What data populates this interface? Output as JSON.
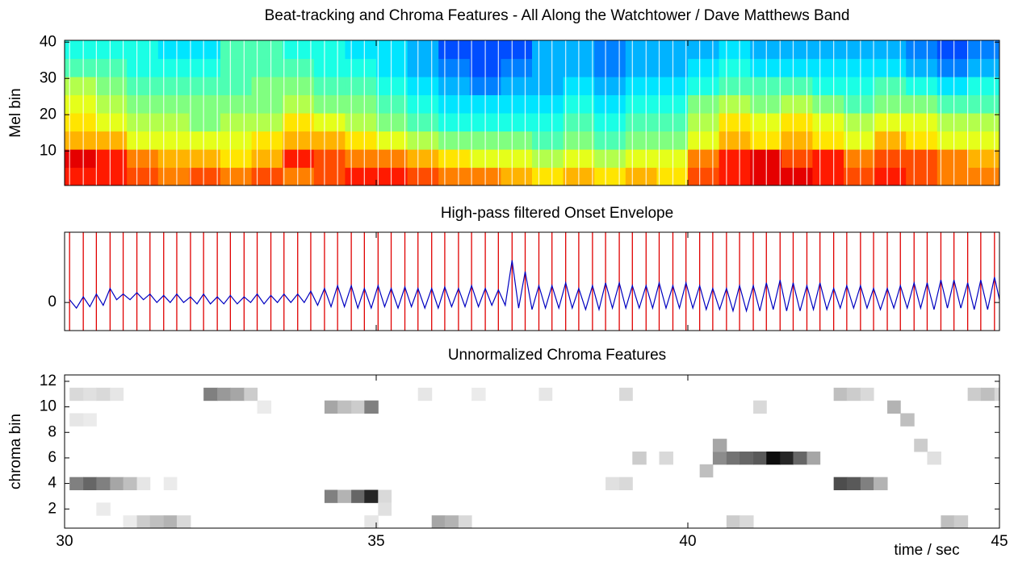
{
  "chart_data": [
    {
      "type": "heatmap",
      "title": "Beat-tracking and Chroma Features - All Along the Watchtower / Dave Matthews Band",
      "ylabel": "Mel bin",
      "xlim": [
        30,
        45
      ],
      "ylim": [
        0.5,
        40.5
      ],
      "yticks": [
        10,
        20,
        30,
        40
      ],
      "colormap": "jet",
      "rows": [
        [
          0.85,
          0.85,
          0.8,
          0.75,
          0.8,
          0.75,
          0.8,
          0.75,
          0.8,
          0.85,
          0.85,
          0.8,
          0.75,
          0.75,
          0.7,
          0.65,
          0.7,
          0.65,
          0.7,
          0.65,
          0.8,
          0.85,
          0.9,
          0.9,
          0.85,
          0.8,
          0.85,
          0.8,
          0.75,
          0.75
        ],
        [
          0.9,
          0.85,
          0.75,
          0.7,
          0.7,
          0.65,
          0.7,
          0.85,
          0.8,
          0.75,
          0.75,
          0.7,
          0.65,
          0.6,
          0.6,
          0.55,
          0.6,
          0.55,
          0.6,
          0.6,
          0.75,
          0.85,
          0.9,
          0.8,
          0.85,
          0.75,
          0.8,
          0.8,
          0.75,
          0.7
        ],
        [
          0.7,
          0.7,
          0.6,
          0.6,
          0.6,
          0.6,
          0.65,
          0.7,
          0.7,
          0.65,
          0.6,
          0.55,
          0.5,
          0.5,
          0.5,
          0.45,
          0.5,
          0.45,
          0.5,
          0.5,
          0.6,
          0.7,
          0.65,
          0.7,
          0.65,
          0.6,
          0.7,
          0.65,
          0.6,
          0.6
        ],
        [
          0.65,
          0.6,
          0.55,
          0.55,
          0.5,
          0.55,
          0.55,
          0.65,
          0.6,
          0.55,
          0.5,
          0.45,
          0.4,
          0.4,
          0.4,
          0.4,
          0.45,
          0.4,
          0.45,
          0.45,
          0.55,
          0.65,
          0.6,
          0.65,
          0.6,
          0.55,
          0.6,
          0.6,
          0.55,
          0.55
        ],
        [
          0.6,
          0.55,
          0.5,
          0.5,
          0.5,
          0.5,
          0.5,
          0.55,
          0.5,
          0.5,
          0.45,
          0.4,
          0.35,
          0.35,
          0.35,
          0.35,
          0.4,
          0.35,
          0.4,
          0.4,
          0.5,
          0.55,
          0.5,
          0.55,
          0.5,
          0.45,
          0.5,
          0.5,
          0.45,
          0.45
        ],
        [
          0.55,
          0.5,
          0.45,
          0.45,
          0.45,
          0.45,
          0.5,
          0.5,
          0.45,
          0.45,
          0.4,
          0.35,
          0.3,
          0.25,
          0.3,
          0.3,
          0.35,
          0.3,
          0.35,
          0.35,
          0.4,
          0.45,
          0.45,
          0.45,
          0.4,
          0.4,
          0.45,
          0.4,
          0.35,
          0.4
        ],
        [
          0.45,
          0.45,
          0.4,
          0.4,
          0.4,
          0.45,
          0.45,
          0.45,
          0.4,
          0.4,
          0.35,
          0.3,
          0.25,
          0.2,
          0.25,
          0.3,
          0.3,
          0.25,
          0.3,
          0.3,
          0.35,
          0.4,
          0.35,
          0.35,
          0.35,
          0.35,
          0.35,
          0.3,
          0.25,
          0.3
        ],
        [
          0.4,
          0.4,
          0.4,
          0.35,
          0.35,
          0.45,
          0.45,
          0.4,
          0.4,
          0.35,
          0.35,
          0.3,
          0.2,
          0.2,
          0.2,
          0.3,
          0.3,
          0.25,
          0.3,
          0.3,
          0.3,
          0.35,
          0.3,
          0.3,
          0.3,
          0.3,
          0.3,
          0.25,
          0.2,
          0.25
        ]
      ]
    },
    {
      "type": "line",
      "title": "High-pass filtered Onset Envelope",
      "xlim": [
        30,
        45
      ],
      "ylim": [
        -1,
        2.5
      ],
      "yticks": [
        0
      ],
      "beat_color": "#e00000",
      "color": "#0000c0",
      "beats": [
        30.08,
        30.3,
        30.51,
        30.73,
        30.94,
        31.16,
        31.37,
        31.59,
        31.8,
        32.02,
        32.23,
        32.45,
        32.66,
        32.88,
        33.09,
        33.31,
        33.52,
        33.74,
        33.95,
        34.17,
        34.38,
        34.6,
        34.81,
        35.03,
        35.24,
        35.46,
        35.67,
        35.89,
        36.1,
        36.32,
        36.53,
        36.75,
        36.96,
        37.18,
        37.39,
        37.61,
        37.82,
        38.04,
        38.25,
        38.47,
        38.68,
        38.9,
        39.11,
        39.33,
        39.54,
        39.76,
        39.97,
        40.19,
        40.4,
        40.62,
        40.83,
        41.05,
        41.26,
        41.48,
        41.69,
        41.91,
        42.12,
        42.34,
        42.55,
        42.77,
        42.98,
        43.2,
        43.41,
        43.63,
        43.84,
        44.06,
        44.27,
        44.49,
        44.7,
        44.92
      ],
      "peaks": [
        0.1,
        0.2,
        0.3,
        0.5,
        0.3,
        0.35,
        0.3,
        0.25,
        0.3,
        0.2,
        0.3,
        0.2,
        0.25,
        0.2,
        0.3,
        0.25,
        0.3,
        0.3,
        0.4,
        0.5,
        0.6,
        0.6,
        0.5,
        0.6,
        0.5,
        0.55,
        0.5,
        0.5,
        0.55,
        0.5,
        0.6,
        0.5,
        0.45,
        1.5,
        1.1,
        0.6,
        0.6,
        0.7,
        0.5,
        0.6,
        0.7,
        0.7,
        0.6,
        0.6,
        0.7,
        0.6,
        0.7,
        0.6,
        0.5,
        0.5,
        0.6,
        0.6,
        0.7,
        0.8,
        0.7,
        0.6,
        0.7,
        0.5,
        0.6,
        0.6,
        0.5,
        0.5,
        0.6,
        0.7,
        0.7,
        0.8,
        0.8,
        0.7,
        0.8,
        0.9
      ],
      "troughs": [
        -0.2,
        -0.15,
        -0.1,
        0.1,
        0.1,
        0.1,
        0.0,
        0.0,
        0.0,
        -0.05,
        -0.05,
        -0.05,
        -0.05,
        0.0,
        -0.05,
        0.0,
        0.0,
        0.0,
        -0.1,
        -0.15,
        -0.15,
        -0.2,
        -0.2,
        -0.15,
        -0.2,
        -0.15,
        -0.2,
        -0.2,
        -0.15,
        -0.15,
        -0.15,
        -0.1,
        -0.1,
        -0.2,
        -0.25,
        -0.2,
        -0.2,
        -0.2,
        -0.25,
        -0.25,
        -0.2,
        -0.2,
        -0.2,
        -0.2,
        -0.2,
        -0.2,
        -0.2,
        -0.25,
        -0.25,
        -0.3,
        -0.3,
        -0.3,
        -0.25,
        -0.3,
        -0.3,
        -0.25,
        -0.25,
        -0.2,
        -0.2,
        -0.2,
        -0.25,
        -0.2,
        -0.2,
        -0.2,
        -0.25,
        -0.2,
        -0.2,
        -0.25,
        -0.25,
        -0.2
      ]
    },
    {
      "type": "heatmap",
      "title": "Unnormalized Chroma Features",
      "ylabel": "chroma bin",
      "xlabel": "time / sec",
      "xlim": [
        30,
        45
      ],
      "xticks": [
        30,
        35,
        40,
        45
      ],
      "ylim": [
        0.5,
        12.5
      ],
      "yticks": [
        2,
        4,
        6,
        8,
        10,
        12
      ],
      "colormap": "gray",
      "cells": [
        [
          0,
          4,
          0.5
        ],
        [
          1,
          4,
          0.6
        ],
        [
          2,
          4,
          0.5
        ],
        [
          3,
          4,
          0.35
        ],
        [
          4,
          4,
          0.25
        ],
        [
          5,
          4,
          0.1
        ],
        [
          0,
          11,
          0.15
        ],
        [
          1,
          11,
          0.12
        ],
        [
          2,
          11,
          0.15
        ],
        [
          3,
          11,
          0.1
        ],
        [
          0,
          9,
          0.1
        ],
        [
          1,
          9,
          0.08
        ],
        [
          2,
          2,
          0.08
        ],
        [
          4,
          1,
          0.08
        ],
        [
          5,
          1,
          0.2
        ],
        [
          6,
          1,
          0.25
        ],
        [
          7,
          1,
          0.3
        ],
        [
          8,
          1,
          0.15
        ],
        [
          7,
          4,
          0.08
        ],
        [
          10,
          11,
          0.5
        ],
        [
          11,
          11,
          0.4
        ],
        [
          12,
          11,
          0.35
        ],
        [
          13,
          11,
          0.2
        ],
        [
          14,
          10,
          0.08
        ],
        [
          19,
          3,
          0.5
        ],
        [
          20,
          3,
          0.3
        ],
        [
          21,
          3,
          0.6
        ],
        [
          22,
          3,
          0.85
        ],
        [
          19,
          10,
          0.35
        ],
        [
          20,
          10,
          0.25
        ],
        [
          21,
          10,
          0.2
        ],
        [
          22,
          10,
          0.5
        ],
        [
          23,
          3,
          0.15
        ],
        [
          23,
          2,
          0.12
        ],
        [
          22,
          1,
          0.1
        ],
        [
          27,
          1,
          0.35
        ],
        [
          28,
          1,
          0.3
        ],
        [
          29,
          1,
          0.15
        ],
        [
          26,
          11,
          0.1
        ],
        [
          30,
          11,
          0.08
        ],
        [
          35,
          11,
          0.1
        ],
        [
          41,
          11,
          0.15
        ],
        [
          40,
          4,
          0.12
        ],
        [
          41,
          4,
          0.15
        ],
        [
          42,
          6,
          0.2
        ],
        [
          44,
          6,
          0.15
        ],
        [
          47,
          5,
          0.25
        ],
        [
          48,
          6,
          0.45
        ],
        [
          48,
          7,
          0.35
        ],
        [
          49,
          6,
          0.55
        ],
        [
          50,
          6,
          0.6
        ],
        [
          51,
          6,
          0.65
        ],
        [
          52,
          6,
          0.95
        ],
        [
          53,
          6,
          0.85
        ],
        [
          54,
          6,
          0.6
        ],
        [
          55,
          6,
          0.35
        ],
        [
          49,
          1,
          0.2
        ],
        [
          50,
          1,
          0.15
        ],
        [
          51,
          10,
          0.15
        ],
        [
          57,
          4,
          0.7
        ],
        [
          58,
          4,
          0.65
        ],
        [
          59,
          4,
          0.5
        ],
        [
          60,
          4,
          0.3
        ],
        [
          57,
          11,
          0.25
        ],
        [
          58,
          11,
          0.2
        ],
        [
          59,
          11,
          0.15
        ],
        [
          61,
          10,
          0.3
        ],
        [
          62,
          9,
          0.25
        ],
        [
          63,
          7,
          0.2
        ],
        [
          64,
          6,
          0.12
        ],
        [
          65,
          1,
          0.25
        ],
        [
          66,
          1,
          0.2
        ],
        [
          67,
          11,
          0.2
        ],
        [
          68,
          11,
          0.25
        ],
        [
          69,
          11,
          0.15
        ]
      ]
    }
  ]
}
